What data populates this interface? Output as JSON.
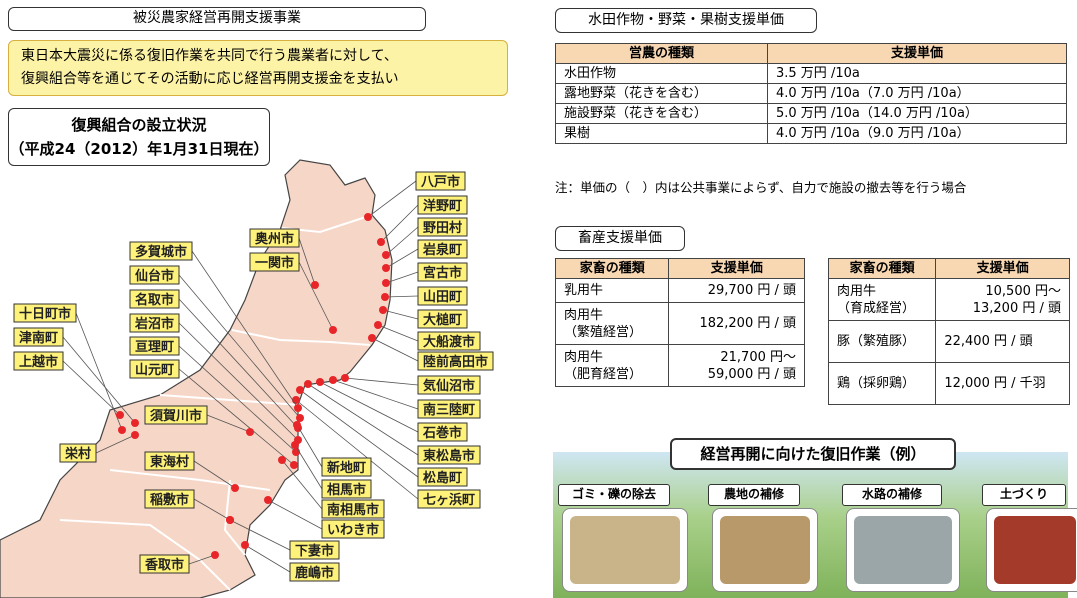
{
  "header": {
    "title": "被災農家経営再開支援事業",
    "summary": [
      "東日本大震災に係る復旧作業を共同で行う農業者に対して、",
      "復興組合等を通じてその活動に応じ経営再開支援金を支払い"
    ]
  },
  "map": {
    "title": [
      "復興組合の設立状況",
      "（平成24（2012）年1月31日現在）"
    ],
    "labels": [
      "八戸市",
      "洋野町",
      "野田村",
      "岩泉町",
      "宮古市",
      "山田町",
      "大槌町",
      "大船渡市",
      "陸前高田市",
      "気仙沼市",
      "南三陸町",
      "石巻市",
      "東松島市",
      "松島町",
      "七ヶ浜町",
      "奥州市",
      "一関市",
      "多賀城市",
      "仙台市",
      "名取市",
      "岩沼市",
      "亘理町",
      "山元町",
      "十日町市",
      "津南町",
      "上越市",
      "須賀川市",
      "栄村",
      "東海村",
      "新地町",
      "相馬市",
      "南相馬市",
      "いわき市",
      "稲敷市",
      "香取市",
      "下妻市",
      "鹿嶋市"
    ]
  },
  "crop_table": {
    "title": "水田作物・野菜・果樹支援単価",
    "columns": [
      "営農の種類",
      "支援単価"
    ],
    "rows": [
      [
        "水田作物",
        "3.5 万円 /10a"
      ],
      [
        "露地野菜（花きを含む）",
        "4.0 万円 /10a（7.0 万円 /10a）"
      ],
      [
        "施設野菜（花きを含む）",
        "5.0 万円 /10a（14.0 万円 /10a）"
      ],
      [
        "果樹",
        "4.0 万円 /10a（9.0 万円 /10a）"
      ]
    ],
    "note": "注：単価の（　）内は公共事業によらず、自力で施設の撤去等を行う場合"
  },
  "livestock": {
    "title": "畜産支援単価",
    "tables": [
      {
        "columns": [
          "家畜の種類",
          "支援単価"
        ],
        "rows": [
          [
            [
              "乳用牛"
            ],
            [
              "29,700 円 / 頭"
            ]
          ],
          [
            [
              "肉用牛",
              "（繁殖経営）"
            ],
            [
              "182,200 円 / 頭"
            ]
          ],
          [
            [
              "肉用牛",
              "（肥育経営）"
            ],
            [
              "21,700 円〜",
              "59,000 円 / 頭"
            ]
          ]
        ]
      },
      {
        "columns": [
          "家畜の種類",
          "支援単価"
        ],
        "rows": [
          [
            [
              "肉用牛",
              "（育成経営）"
            ],
            [
              "10,500 円〜",
              "13,200 円 / 頭"
            ]
          ],
          [
            [
              "豚（繁殖豚）"
            ],
            [
              "22,400 円 / 頭"
            ]
          ],
          [
            [
              "鶏（採卵鶏）"
            ],
            [
              "12,000 円 / 千羽"
            ]
          ]
        ]
      }
    ]
  },
  "recovery": {
    "title": "経営再開に向けた復旧作業（例）",
    "steps": [
      "ゴミ・礫の除去",
      "農地の補修",
      "水路の補修",
      "土づくり"
    ]
  }
}
